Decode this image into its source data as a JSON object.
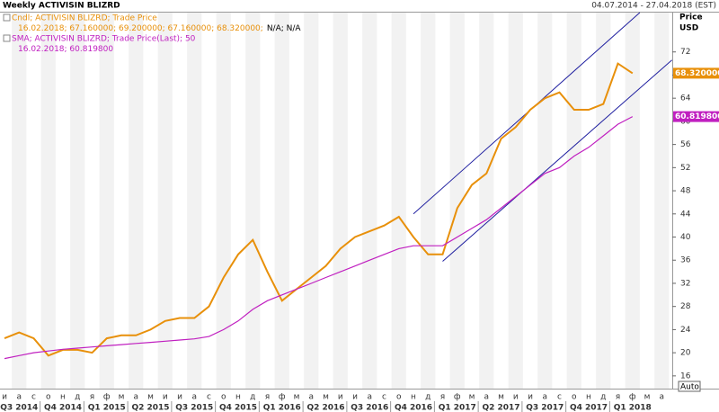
{
  "chart_data": {
    "type": "line",
    "title": "Weekly ACTIVISIN BLIZRD",
    "date_range": "04.07.2014 - 27.04.2018 (EST)",
    "y_axis_label": "Price",
    "y_axis_unit": "USD",
    "auto_label": "Auto",
    "legend_lines": [
      {
        "text": "Cndl; ACTIVISIN BLIZRD; Trade Price",
        "color": "#e8900a"
      },
      {
        "text": "16.02.2018; 67.160000; 69.200000; 67.160000; 68.320000;",
        "color": "#e8900a",
        "suffix": "N/A; N/A"
      },
      {
        "text": "SMA; ACTIVISIN BLIZRD; Trade Price(Last);  50",
        "color": "#c020c0"
      },
      {
        "text": "16.02.2018; 60.819800",
        "color": "#c020c0"
      }
    ],
    "categories": [
      "и",
      "а",
      "с",
      "о",
      "н",
      "д",
      "я",
      "ф",
      "м",
      "а",
      "м",
      "и",
      "и",
      "а",
      "с",
      "о",
      "н",
      "д",
      "я",
      "ф",
      "м",
      "а",
      "м",
      "и",
      "и",
      "а",
      "с",
      "о",
      "н",
      "д",
      "я",
      "ф",
      "м",
      "а",
      "м",
      "и",
      "и",
      "а",
      "с",
      "о",
      "н",
      "д",
      "я",
      "ф",
      "м",
      "а"
    ],
    "quarters": [
      "Q3 2014",
      "Q4 2014",
      "Q1 2015",
      "Q2 2015",
      "Q3 2015",
      "Q4 2015",
      "Q1 2016",
      "Q2 2016",
      "Q3 2016",
      "Q4 2016",
      "Q1 2017",
      "Q2 2017",
      "Q3 2017",
      "Q4 2017",
      "Q1 2018"
    ],
    "series": [
      {
        "name": "Cndl",
        "color": "#e8900a",
        "last_label": "68.320000",
        "values": [
          22.5,
          23.5,
          22.5,
          19.5,
          20.5,
          20.5,
          20,
          22.5,
          23,
          23,
          24,
          25.5,
          26,
          26,
          28,
          33,
          37,
          39.5,
          34,
          29,
          31,
          33,
          35,
          38,
          40,
          41,
          42,
          43.5,
          40,
          37,
          37,
          45,
          49,
          51,
          57,
          59,
          62,
          64,
          65,
          62,
          62,
          63,
          70,
          68.32,
          null,
          null
        ]
      },
      {
        "name": "SMA",
        "color": "#c020c0",
        "last_label": "60.819800",
        "values": [
          19,
          19.5,
          20,
          20.3,
          20.6,
          20.8,
          21,
          21.2,
          21.4,
          21.6,
          21.8,
          22,
          22.2,
          22.4,
          22.8,
          24,
          25.5,
          27.5,
          29,
          30,
          31,
          32,
          33,
          34,
          35,
          36,
          37,
          38,
          38.5,
          38.5,
          38.5,
          40,
          41.5,
          43,
          45,
          47,
          49,
          51,
          52,
          54,
          55.5,
          57.5,
          59.5,
          60.8198,
          null,
          null
        ]
      }
    ],
    "trendlines": [
      {
        "color": "#2020a0",
        "x": [
          28,
          43.5
        ],
        "y": [
          44,
          78.8
        ]
      },
      {
        "color": "#2020a0",
        "x": [
          30,
          45.7
        ],
        "y": [
          35.8,
          70.6
        ]
      }
    ],
    "ylim": [
      13.8,
      78.8
    ],
    "yticks": [
      16,
      20,
      24,
      28,
      32,
      36,
      40,
      44,
      48,
      52,
      56,
      60,
      64,
      68,
      72
    ]
  }
}
